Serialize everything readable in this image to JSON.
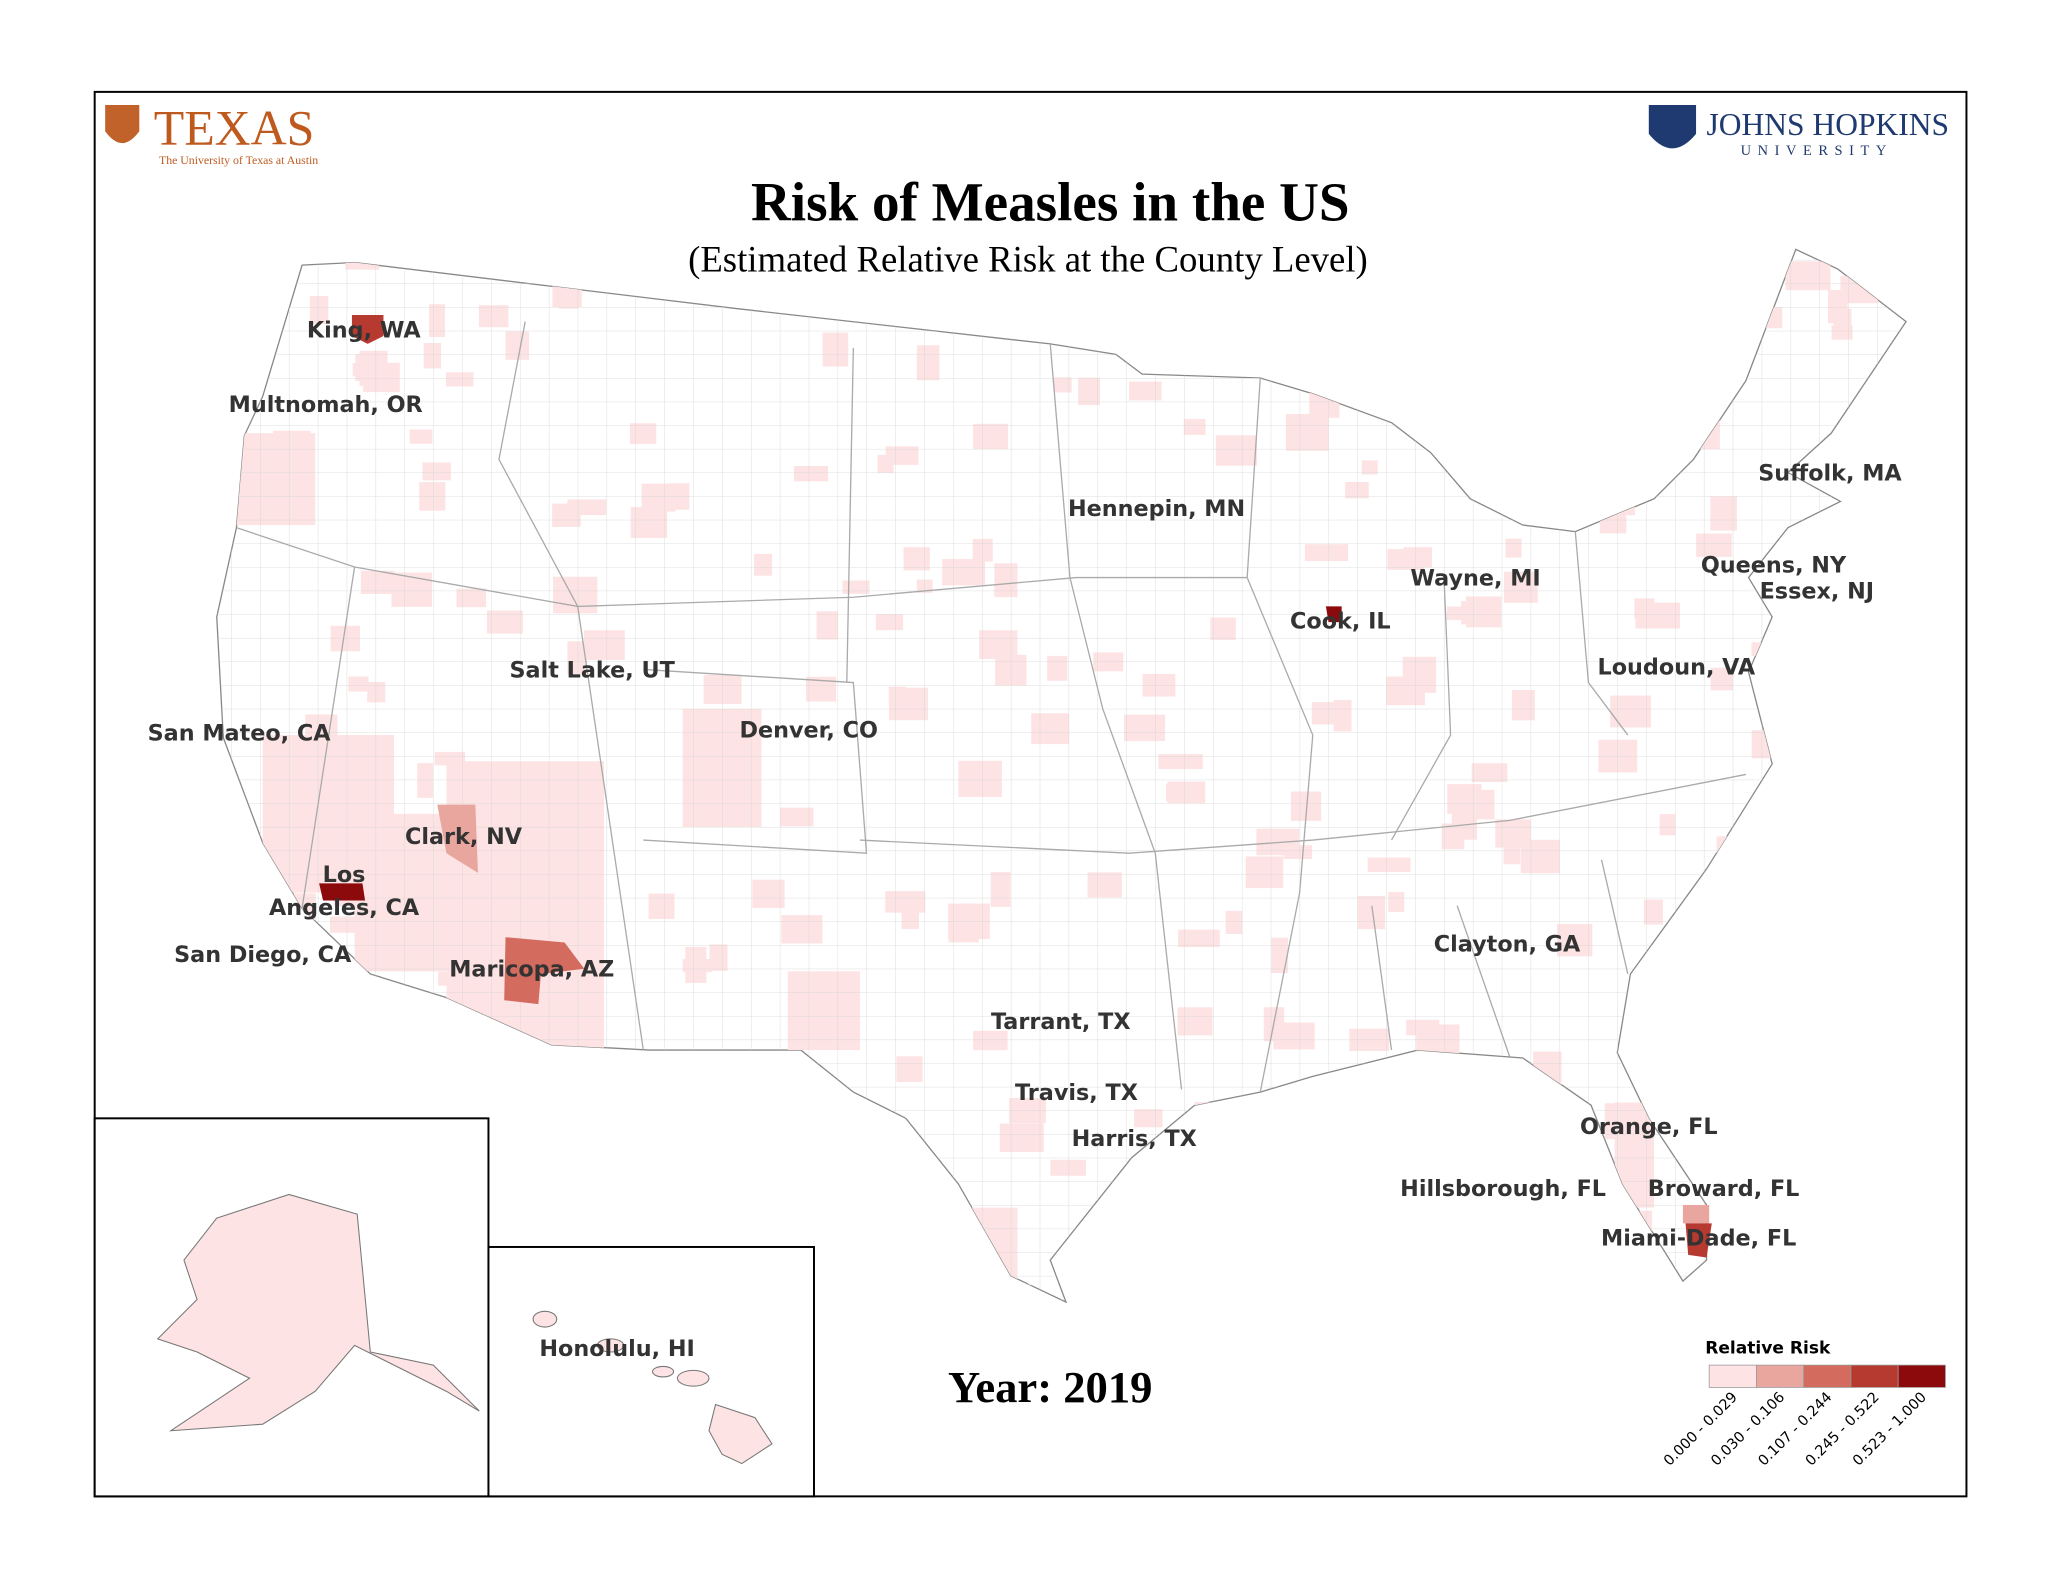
{
  "header": {
    "left_logo": {
      "title": "TEXAS",
      "subtitle": "The University of Texas at Austin"
    },
    "right_logo": {
      "title": "JOHNS HOPKINS",
      "subtitle": "UNIVERSITY"
    }
  },
  "title": "Risk of Measles in the US",
  "subtitle": "(Estimated Relative Risk at the County Level)",
  "year_label": "Year: 2019",
  "county_labels": [
    "King, WA",
    "Multnomah, OR",
    "Hennepin, MN",
    "Suffolk, MA",
    "Queens, NY",
    "Essex, NJ",
    "Wayne, MI",
    "Cook, IL",
    "Loudoun, VA",
    "Salt Lake, UT",
    "Denver, CO",
    "San Mateo, CA",
    "Clark, NV",
    "Los",
    "Angeles, CA",
    "San Diego, CA",
    "Maricopa, AZ",
    "Clayton, GA",
    "Tarrant, TX",
    "Travis, TX",
    "Harris, TX",
    "Orange, FL",
    "Hillsborough, FL",
    "Broward, FL",
    "Miami-Dade, FL",
    "Honolulu, HI"
  ],
  "legend": {
    "title": "Relative Risk",
    "bins": [
      {
        "label": "0.000 - 0.029",
        "color": "#fde3e3"
      },
      {
        "label": "0.030 - 0.106",
        "color": "#e9a69e"
      },
      {
        "label": "0.107 - 0.244",
        "color": "#d46b5f"
      },
      {
        "label": "0.245 - 0.522",
        "color": "#b73a31"
      },
      {
        "label": "0.523 - 1.000",
        "color": "#8c0a0c"
      }
    ]
  }
}
